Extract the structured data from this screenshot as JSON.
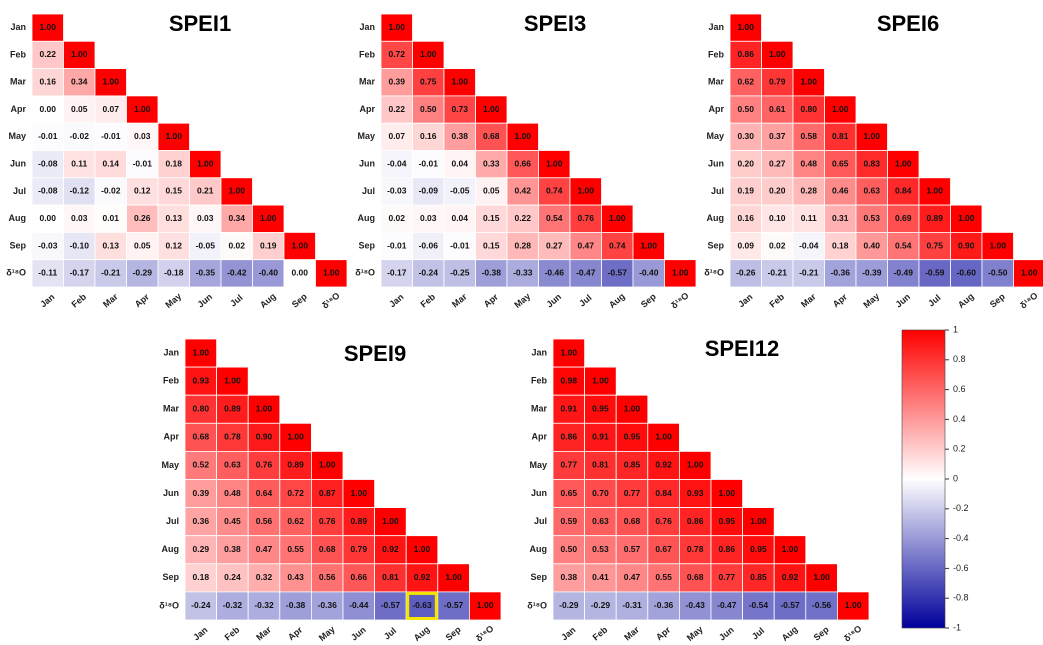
{
  "chart_data": [
    {
      "type": "heatmap",
      "title": "SPEI1",
      "categories": [
        "Jan",
        "Feb",
        "Mar",
        "Apr",
        "May",
        "Jun",
        "Jul",
        "Aug",
        "Sep",
        "δ¹⁸O"
      ],
      "values": [
        [
          1.0
        ],
        [
          0.22,
          1.0
        ],
        [
          0.16,
          0.34,
          1.0
        ],
        [
          0.0,
          0.05,
          0.07,
          1.0
        ],
        [
          -0.01,
          -0.02,
          -0.01,
          0.03,
          1.0
        ],
        [
          -0.08,
          0.11,
          0.14,
          -0.01,
          0.18,
          1.0
        ],
        [
          -0.08,
          -0.12,
          -0.02,
          0.12,
          0.15,
          0.21,
          1.0
        ],
        [
          0.0,
          0.03,
          0.01,
          0.26,
          0.13,
          0.03,
          0.34,
          1.0
        ],
        [
          -0.03,
          -0.1,
          0.13,
          0.05,
          0.12,
          -0.05,
          0.02,
          0.19,
          1.0
        ],
        [
          -0.11,
          -0.17,
          -0.21,
          -0.29,
          -0.18,
          -0.35,
          -0.42,
          -0.4,
          0.0,
          1.0
        ]
      ],
      "value_labels": [
        [
          "1.00"
        ],
        [
          "0.22",
          "1.00"
        ],
        [
          "0.16",
          "0.34",
          "1.00"
        ],
        [
          "0.00",
          "0.05",
          "0.07",
          "1.00"
        ],
        [
          "-0.01",
          "-0.02",
          "-0.01",
          "0.03",
          "1.00"
        ],
        [
          "-0.08",
          "0.11",
          "0.14",
          "-0.01",
          "0.18",
          "1.00"
        ],
        [
          "-0.08",
          "-0.12",
          "-0.02",
          "0.12",
          "0.15",
          "0.21",
          "1.00"
        ],
        [
          "0.00",
          "0.03",
          "0.01",
          "0.26",
          "0.13",
          "0.03",
          "0.34",
          "1.00"
        ],
        [
          "-0.03",
          "-0.10",
          "0.13",
          "0.05",
          "0.12",
          "-0.05",
          "0.02",
          "0.19",
          "1.00"
        ],
        [
          "-0.11",
          "-0.17",
          "-0.21",
          "-0.29",
          "-0.18",
          "-0.35",
          "-0.42",
          "-0.40",
          "0.00",
          "1.00"
        ]
      ]
    },
    {
      "type": "heatmap",
      "title": "SPEI3",
      "categories": [
        "Jan",
        "Feb",
        "Mar",
        "Apr",
        "May",
        "Jun",
        "Jul",
        "Aug",
        "Sep",
        "δ¹⁸O"
      ],
      "values": [
        [
          1.0
        ],
        [
          0.72,
          1.0
        ],
        [
          0.39,
          0.75,
          1.0
        ],
        [
          0.22,
          0.5,
          0.73,
          1.0
        ],
        [
          0.07,
          0.16,
          0.38,
          0.68,
          1.0
        ],
        [
          -0.04,
          -0.01,
          0.04,
          0.33,
          0.66,
          1.0
        ],
        [
          -0.03,
          -0.09,
          -0.05,
          0.05,
          0.42,
          0.74,
          1.0
        ],
        [
          0.02,
          0.03,
          0.04,
          0.15,
          0.22,
          0.54,
          0.76,
          1.0
        ],
        [
          -0.01,
          -0.06,
          -0.01,
          0.15,
          0.28,
          0.27,
          0.47,
          0.74,
          1.0
        ],
        [
          -0.17,
          -0.24,
          -0.25,
          -0.38,
          -0.33,
          -0.46,
          -0.47,
          -0.57,
          -0.4,
          1.0
        ]
      ],
      "value_labels": [
        [
          "1.00"
        ],
        [
          "0.72",
          "1.00"
        ],
        [
          "0.39",
          "0.75",
          "1.00"
        ],
        [
          "0.22",
          "0.50",
          "0.73",
          "1.00"
        ],
        [
          "0.07",
          "0.16",
          "0.38",
          "0.68",
          "1.00"
        ],
        [
          "-0.04",
          "-0.01",
          "0.04",
          "0.33",
          "0.66",
          "1.00"
        ],
        [
          "-0.03",
          "-0.09",
          "-0.05",
          "0.05",
          "0.42",
          "0.74",
          "1.00"
        ],
        [
          "0.02",
          "0.03",
          "0.04",
          "0.15",
          "0.22",
          "0.54",
          "0.76",
          "1.00"
        ],
        [
          "-0.01",
          "-0.06",
          "-0.01",
          "0.15",
          "0.28",
          "0.27",
          "0.47",
          "0.74",
          "1.00"
        ],
        [
          "-0.17",
          "-0.24",
          "-0.25",
          "-0.38",
          "-0.33",
          "-0.46",
          "-0.47",
          "-0.57",
          "-0.40",
          "1.00"
        ]
      ]
    },
    {
      "type": "heatmap",
      "title": "SPEI6",
      "categories": [
        "Jan",
        "Feb",
        "Mar",
        "Apr",
        "May",
        "Jun",
        "Jul",
        "Aug",
        "Sep",
        "δ¹⁸O"
      ],
      "values": [
        [
          1.0
        ],
        [
          0.86,
          1.0
        ],
        [
          0.62,
          0.79,
          1.0
        ],
        [
          0.5,
          0.61,
          0.8,
          1.0
        ],
        [
          0.3,
          0.37,
          0.58,
          0.81,
          1.0
        ],
        [
          0.2,
          0.27,
          0.48,
          0.65,
          0.83,
          1.0
        ],
        [
          0.19,
          0.2,
          0.28,
          0.46,
          0.63,
          0.84,
          1.0
        ],
        [
          0.16,
          0.1,
          0.11,
          0.31,
          0.53,
          0.69,
          0.89,
          1.0
        ],
        [
          0.09,
          0.02,
          -0.04,
          0.18,
          0.4,
          0.54,
          0.75,
          0.9,
          1.0
        ],
        [
          -0.26,
          -0.21,
          -0.21,
          -0.36,
          -0.39,
          -0.49,
          -0.59,
          -0.6,
          -0.5,
          1.0
        ]
      ],
      "value_labels": [
        [
          "1.00"
        ],
        [
          "0.86",
          "1.00"
        ],
        [
          "0.62",
          "0.79",
          "1.00"
        ],
        [
          "0.50",
          "0.61",
          "0.80",
          "1.00"
        ],
        [
          "0.30",
          "0.37",
          "0.58",
          "0.81",
          "1.00"
        ],
        [
          "0.20",
          "0.27",
          "0.48",
          "0.65",
          "0.83",
          "1.00"
        ],
        [
          "0.19",
          "0.20",
          "0.28",
          "0.46",
          "0.63",
          "0.84",
          "1.00"
        ],
        [
          "0.16",
          "0.10",
          "0.11",
          "0.31",
          "0.53",
          "0.69",
          "0.89",
          "1.00"
        ],
        [
          "0.09",
          "0.02",
          "-0.04",
          "0.18",
          "0.40",
          "0.54",
          "0.75",
          "0.90",
          "1.00"
        ],
        [
          "-0.26",
          "-0.21",
          "-0.21",
          "-0.36",
          "-0.39",
          "-0.49",
          "-0.59",
          "-0.60",
          "-0.50",
          "1.00"
        ]
      ]
    },
    {
      "type": "heatmap",
      "title": "SPEI9",
      "categories": [
        "Jan",
        "Feb",
        "Mar",
        "Apr",
        "May",
        "Jun",
        "Jul",
        "Aug",
        "Sep",
        "δ¹⁸O"
      ],
      "values": [
        [
          1.0
        ],
        [
          0.93,
          1.0
        ],
        [
          0.8,
          0.89,
          1.0
        ],
        [
          0.68,
          0.78,
          0.9,
          1.0
        ],
        [
          0.52,
          0.63,
          0.76,
          0.89,
          1.0
        ],
        [
          0.39,
          0.48,
          0.64,
          0.72,
          0.87,
          1.0
        ],
        [
          0.36,
          0.45,
          0.56,
          0.62,
          0.76,
          0.89,
          1.0
        ],
        [
          0.29,
          0.38,
          0.47,
          0.55,
          0.68,
          0.79,
          0.92,
          1.0
        ],
        [
          0.18,
          0.24,
          0.32,
          0.43,
          0.56,
          0.66,
          0.81,
          0.92,
          1.0
        ],
        [
          -0.24,
          -0.32,
          -0.32,
          -0.38,
          -0.36,
          -0.44,
          -0.57,
          -0.63,
          -0.57,
          1.0
        ]
      ],
      "value_labels": [
        [
          "1.00"
        ],
        [
          "0.93",
          "1.00"
        ],
        [
          "0.80",
          "0.89",
          "1.00"
        ],
        [
          "0.68",
          "0.78",
          "0.90",
          "1.00"
        ],
        [
          "0.52",
          "0.63",
          "0.76",
          "0.89",
          "1.00"
        ],
        [
          "0.39",
          "0.48",
          "0.64",
          "0.72",
          "0.87",
          "1.00"
        ],
        [
          "0.36",
          "0.45",
          "0.56",
          "0.62",
          "0.76",
          "0.89",
          "1.00"
        ],
        [
          "0.29",
          "0.38",
          "0.47",
          "0.55",
          "0.68",
          "0.79",
          "0.92",
          "1.00"
        ],
        [
          "0.18",
          "0.24",
          "0.32",
          "0.43",
          "0.56",
          "0.66",
          "0.81",
          "0.92",
          "1.00"
        ],
        [
          "-0.24",
          "-0.32",
          "-0.32",
          "-0.38",
          "-0.36",
          "-0.44",
          "-0.57",
          "-0.63",
          "-0.57",
          "1.00"
        ]
      ],
      "highlight": [
        9,
        7
      ],
      "highlight_color": "#f5e400"
    },
    {
      "type": "heatmap",
      "title": "SPEI12",
      "categories": [
        "Jan",
        "Feb",
        "Mar",
        "Apr",
        "May",
        "Jun",
        "Jul",
        "Aug",
        "Sep",
        "δ¹⁸O"
      ],
      "values": [
        [
          1.0
        ],
        [
          0.98,
          1.0
        ],
        [
          0.91,
          0.95,
          1.0
        ],
        [
          0.86,
          0.91,
          0.95,
          1.0
        ],
        [
          0.77,
          0.81,
          0.85,
          0.92,
          1.0
        ],
        [
          0.65,
          0.7,
          0.77,
          0.84,
          0.93,
          1.0
        ],
        [
          0.59,
          0.63,
          0.68,
          0.76,
          0.86,
          0.95,
          1.0
        ],
        [
          0.5,
          0.53,
          0.57,
          0.67,
          0.78,
          0.86,
          0.95,
          1.0
        ],
        [
          0.38,
          0.41,
          0.47,
          0.55,
          0.68,
          0.77,
          0.85,
          0.92,
          1.0
        ],
        [
          -0.29,
          -0.29,
          -0.31,
          -0.36,
          -0.43,
          -0.47,
          -0.54,
          -0.57,
          -0.56,
          1.0
        ]
      ],
      "value_labels": [
        [
          "1.00"
        ],
        [
          "0.98",
          "1.00"
        ],
        [
          "0.91",
          "0.95",
          "1.00"
        ],
        [
          "0.86",
          "0.91",
          "0.95",
          "1.00"
        ],
        [
          "0.77",
          "0.81",
          "0.85",
          "0.92",
          "1.00"
        ],
        [
          "0.65",
          "0.70",
          "0.77",
          "0.84",
          "0.93",
          "1.00"
        ],
        [
          "0.59",
          "0.63",
          "0.68",
          "0.76",
          "0.86",
          "0.95",
          "1.00"
        ],
        [
          "0.50",
          "0.53",
          "0.57",
          "0.67",
          "0.78",
          "0.86",
          "0.95",
          "1.00"
        ],
        [
          "0.38",
          "0.41",
          "0.47",
          "0.55",
          "0.68",
          "0.77",
          "0.85",
          "0.92",
          "1.00"
        ],
        [
          "-0.29",
          "-0.29",
          "-0.31",
          "-0.36",
          "-0.43",
          "-0.47",
          "-0.54",
          "-0.57",
          "-0.56",
          "1.00"
        ]
      ]
    }
  ],
  "colorbar": {
    "clim": [
      -1,
      1
    ],
    "ticks": [
      1,
      0.8,
      0.6,
      0.4,
      0.2,
      0,
      -0.2,
      -0.4,
      -0.6,
      -0.8,
      -1
    ],
    "colors": [
      "#00009c",
      "#ffffff",
      "#ff0000"
    ]
  }
}
